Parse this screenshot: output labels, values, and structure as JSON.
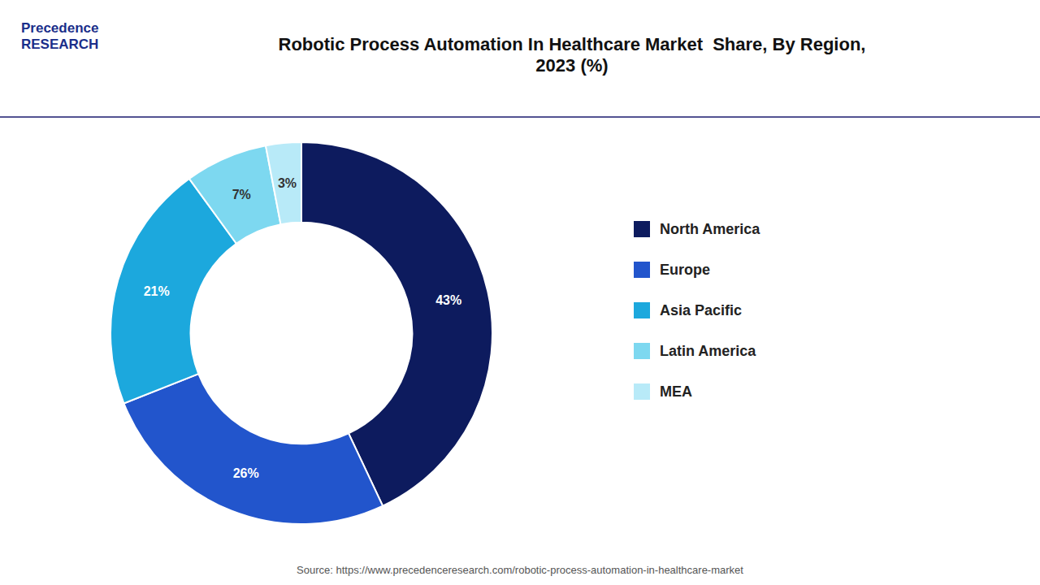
{
  "chart_data": {
    "type": "donut",
    "title": "Robotic Process Automation In Healthcare Market  Share, By Region,\n2023 (%)",
    "categories": [
      "North America",
      "Europe",
      "Asia Pacific",
      "Latin America",
      "MEA"
    ],
    "values": [
      43,
      26,
      21,
      7,
      3
    ],
    "value_labels": [
      "43%",
      "26%",
      "21%",
      "7%",
      "3%"
    ],
    "colors": [
      "#0d1b5e",
      "#2255cc",
      "#1ca8dd",
      "#7dd8f0",
      "#b8eaf8"
    ],
    "data_labels": true,
    "legend": "right",
    "annotations": [
      "Precedence\nRESEARCH",
      "Source: https://www.precedenceresearch.com/robotic-process-automation-in-healthcare-market"
    ]
  }
}
